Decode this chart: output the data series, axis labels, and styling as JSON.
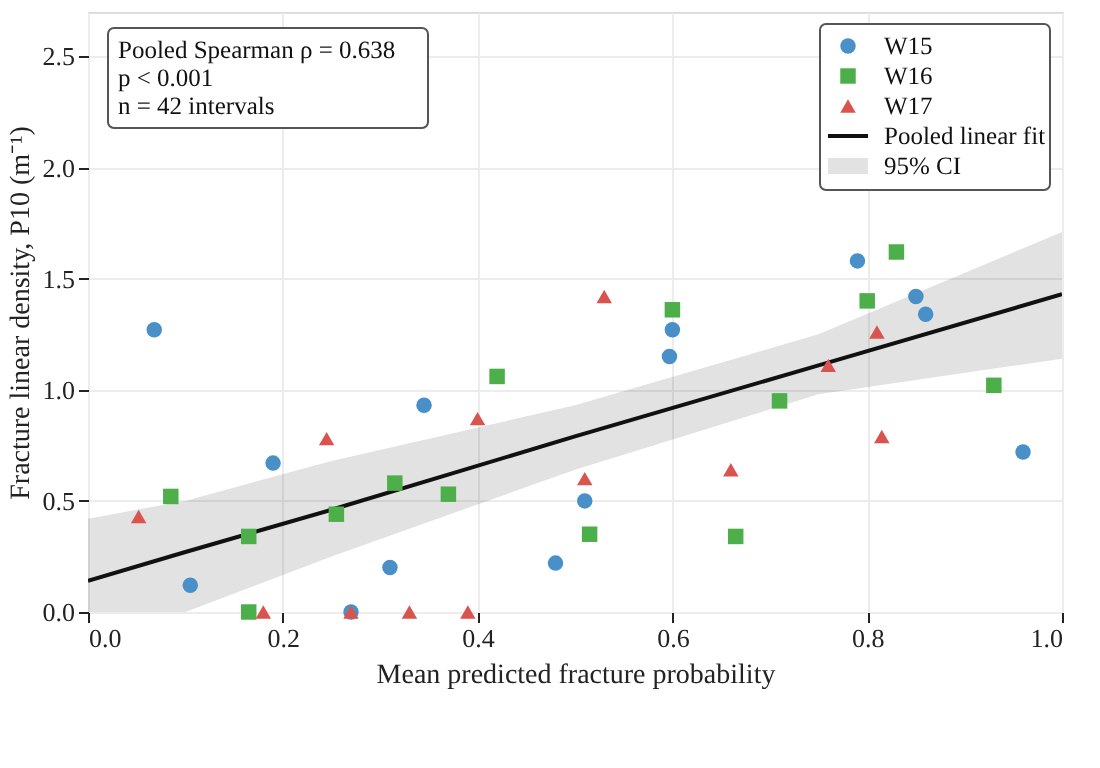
{
  "chart_data": {
    "type": "scatter",
    "xlabel": "Mean predicted fracture probability",
    "ylabel": "Fracture linear density, P10 (m⁻¹)",
    "annotations": [
      "Pooled Spearman ρ = 0.638",
      "p < 0.001",
      "n = 42 intervals",
      "95% CI"
    ],
    "xlim": [
      0,
      1
    ],
    "ylim": [
      0,
      2.7
    ],
    "xticks": [
      {
        "value": 0,
        "label": "0.0"
      },
      {
        "value": 0.2,
        "label": "0.2"
      },
      {
        "value": 0.4,
        "label": "0.4"
      },
      {
        "value": 0.6,
        "label": "0.6"
      },
      {
        "value": 0.8,
        "label": "0.8"
      },
      {
        "value": 1,
        "label": "1.0"
      }
    ],
    "yticks": [
      {
        "value": 0,
        "label": "0.0"
      },
      {
        "value": 0.5,
        "label": "0.5"
      },
      {
        "value": 1,
        "label": "1.0"
      },
      {
        "value": 1.5,
        "label": "1.5"
      },
      {
        "value": 2,
        "label": "2.0"
      },
      {
        "value": 2.5,
        "label": "2.5"
      }
    ],
    "grid": true,
    "legend": "top right",
    "series": [
      {
        "name": "Pooled linear fit",
        "type": "line",
        "color": "#111111",
        "line_style": "solid",
        "marker": "none",
        "x": [
          0,
          0.1,
          0.25,
          0.5,
          0.75,
          1
        ],
        "values": [
          0.14,
          0.27,
          0.46,
          0.79,
          1.11,
          1.43
        ],
        "lower": [
          0.0,
          0.0,
          0.25,
          0.64,
          0.98,
          1.14
        ],
        "upper": [
          0.42,
          0.5,
          0.68,
          0.93,
          1.25,
          1.71
        ]
      },
      {
        "name": "W15",
        "marker": "circle",
        "color": "#4a90c8",
        "x": [
          0.068,
          0.105,
          0.19,
          0.27,
          0.31,
          0.345,
          0.48,
          0.51,
          0.597,
          0.6,
          0.79,
          0.85,
          0.86,
          0.96
        ],
        "values": [
          1.27,
          0.12,
          0.67,
          0.0,
          0.2,
          0.93,
          0.22,
          0.5,
          1.15,
          1.27,
          1.58,
          1.42,
          1.34,
          0.72
        ]
      },
      {
        "name": "W16",
        "marker": "square",
        "color": "#4daf4a",
        "x": [
          0.085,
          0.165,
          0.165,
          0.255,
          0.315,
          0.37,
          0.42,
          0.515,
          0.6,
          0.665,
          0.71,
          0.8,
          0.83,
          0.93
        ],
        "values": [
          0.52,
          0.34,
          0.0,
          0.44,
          0.58,
          0.53,
          1.06,
          0.35,
          1.36,
          0.34,
          0.95,
          1.4,
          1.62,
          1.02
        ]
      },
      {
        "name": "W17",
        "marker": "triangle",
        "color": "#d9534f",
        "x": [
          0.052,
          0.18,
          0.245,
          0.27,
          0.33,
          0.39,
          0.4,
          0.51,
          0.53,
          0.66,
          0.76,
          0.81,
          0.815
        ],
        "values": [
          0.43,
          0.0,
          0.78,
          0.0,
          0.0,
          0.0,
          0.87,
          0.6,
          1.42,
          0.64,
          1.11,
          1.26,
          0.79
        ]
      }
    ]
  }
}
